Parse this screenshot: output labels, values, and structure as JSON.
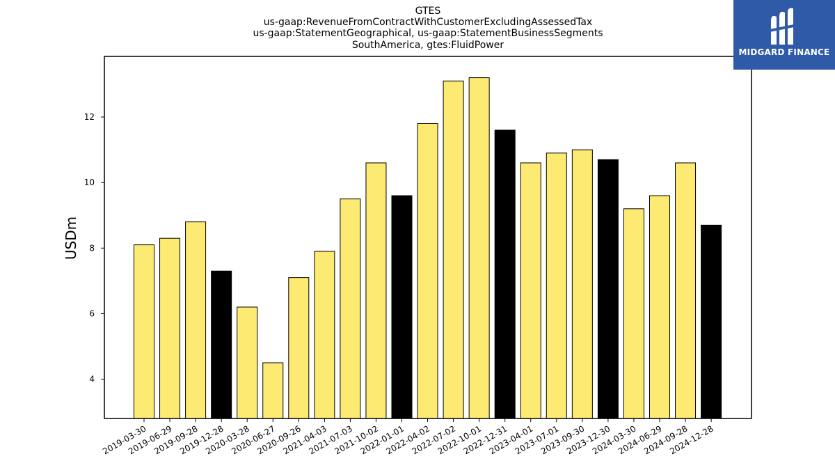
{
  "chart_data": {
    "type": "bar",
    "title_lines": [
      "GTES",
      "us-gaap:RevenueFromContractWithCustomerExcludingAssessedTax",
      "us-gaap:StatementGeographical, us-gaap:StatementBusinessSegments",
      "SouthAmerica, gtes:FluidPower"
    ],
    "xlabel": "",
    "ylabel": "USDm",
    "ylim": [
      2.8,
      13.85
    ],
    "yticks": [
      4,
      6,
      8,
      10,
      12
    ],
    "categories": [
      "2019-03-30",
      "2019-06-29",
      "2019-09-28",
      "2019-12-28",
      "2020-03-28",
      "2020-06-27",
      "2020-09-26",
      "2021-04-03",
      "2021-07-03",
      "2021-10-02",
      "2022-01-01",
      "2022-04-02",
      "2022-07-02",
      "2022-10-01",
      "2022-12-31",
      "2023-04-01",
      "2023-07-01",
      "2023-09-30",
      "2023-12-30",
      "2024-03-30",
      "2024-06-29",
      "2024-09-28",
      "2024-12-28"
    ],
    "values": [
      8.1,
      8.3,
      8.8,
      7.3,
      6.2,
      4.5,
      7.1,
      7.9,
      9.5,
      10.6,
      9.6,
      11.8,
      13.1,
      13.2,
      11.6,
      10.6,
      10.9,
      11.0,
      10.7,
      9.2,
      9.6,
      10.6,
      8.7
    ],
    "highlight": [
      false,
      false,
      false,
      true,
      false,
      false,
      false,
      false,
      false,
      false,
      true,
      false,
      false,
      false,
      true,
      false,
      false,
      false,
      true,
      false,
      false,
      false,
      true
    ],
    "colors": {
      "bar": "#fdea73",
      "highlight": "#000000",
      "edge": "#000000"
    },
    "grid": false
  },
  "logo": {
    "text": "MIDGARD FINANCE",
    "background": "#2f5aa8"
  }
}
